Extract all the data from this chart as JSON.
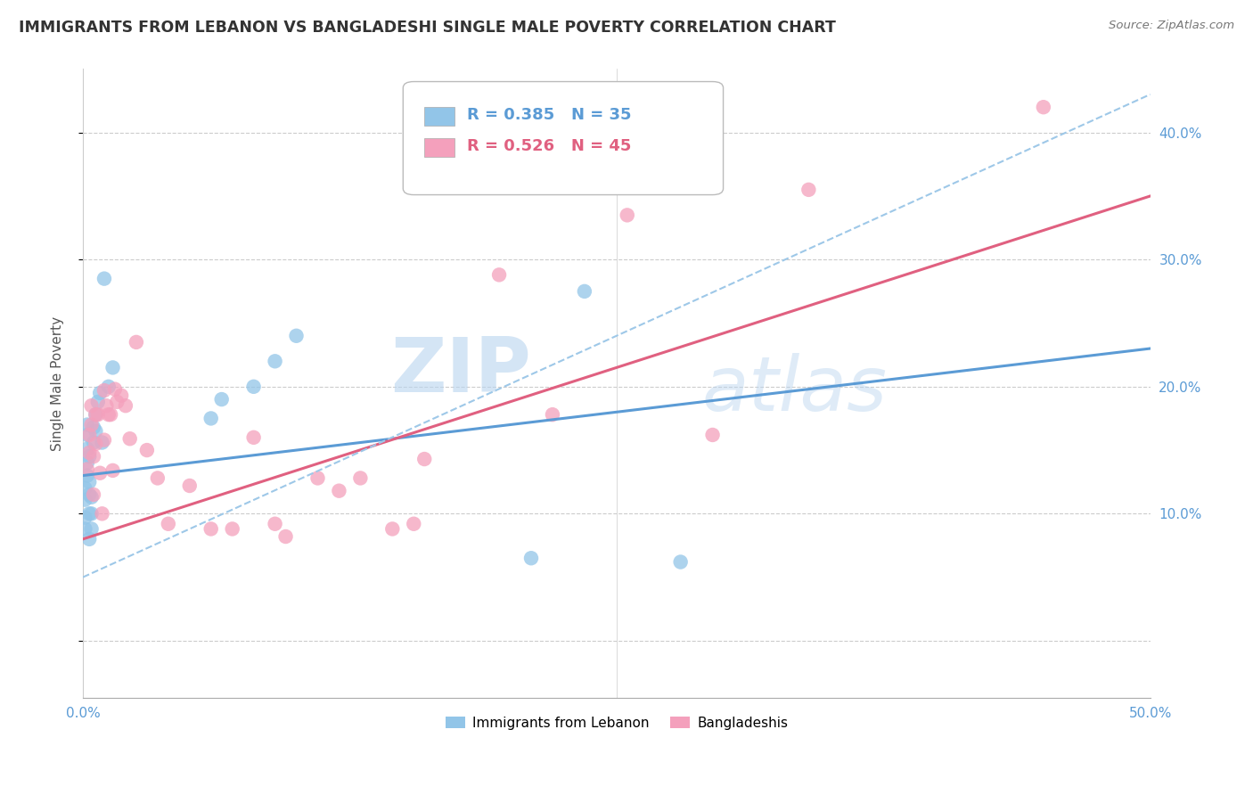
{
  "title": "IMMIGRANTS FROM LEBANON VS BANGLADESHI SINGLE MALE POVERTY CORRELATION CHART",
  "source": "Source: ZipAtlas.com",
  "ylabel": "Single Male Poverty",
  "legend_blue_r": "R = 0.385",
  "legend_blue_n": "N = 35",
  "legend_pink_r": "R = 0.526",
  "legend_pink_n": "N = 45",
  "legend_label_blue": "Immigrants from Lebanon",
  "legend_label_pink": "Bangladeshis",
  "blue_color": "#92C5E8",
  "pink_color": "#F4A0BC",
  "blue_line_color": "#5B9BD5",
  "pink_line_color": "#E06080",
  "dashed_line_color": "#9EC8E8",
  "watermark_zip": "ZIP",
  "watermark_atlas": "atlas",
  "xlim": [
    0.0,
    0.5
  ],
  "ylim": [
    -0.045,
    0.45
  ],
  "blue_trend_x": [
    0.0,
    0.5
  ],
  "blue_trend_y": [
    0.13,
    0.23
  ],
  "pink_trend_x": [
    0.0,
    0.5
  ],
  "pink_trend_y": [
    0.08,
    0.35
  ],
  "dashed_trend_x": [
    0.0,
    0.5
  ],
  "dashed_trend_y": [
    0.05,
    0.43
  ],
  "blue_x": [
    0.001,
    0.001,
    0.001,
    0.001,
    0.002,
    0.002,
    0.002,
    0.002,
    0.002,
    0.003,
    0.003,
    0.003,
    0.003,
    0.003,
    0.004,
    0.004,
    0.004,
    0.005,
    0.005,
    0.006,
    0.006,
    0.007,
    0.008,
    0.009,
    0.01,
    0.012,
    0.014,
    0.06,
    0.065,
    0.08,
    0.09,
    0.1,
    0.21,
    0.235,
    0.28
  ],
  "blue_y": [
    0.088,
    0.097,
    0.111,
    0.12,
    0.13,
    0.14,
    0.151,
    0.162,
    0.17,
    0.08,
    0.1,
    0.115,
    0.125,
    0.145,
    0.088,
    0.1,
    0.113,
    0.156,
    0.168,
    0.165,
    0.178,
    0.188,
    0.195,
    0.156,
    0.285,
    0.2,
    0.215,
    0.175,
    0.19,
    0.2,
    0.22,
    0.24,
    0.065,
    0.275,
    0.062
  ],
  "pink_x": [
    0.002,
    0.003,
    0.003,
    0.004,
    0.004,
    0.005,
    0.005,
    0.006,
    0.006,
    0.007,
    0.008,
    0.009,
    0.01,
    0.01,
    0.011,
    0.012,
    0.013,
    0.014,
    0.015,
    0.016,
    0.018,
    0.02,
    0.022,
    0.025,
    0.03,
    0.035,
    0.04,
    0.05,
    0.06,
    0.07,
    0.08,
    0.09,
    0.095,
    0.11,
    0.12,
    0.13,
    0.145,
    0.155,
    0.16,
    0.195,
    0.22,
    0.255,
    0.295,
    0.34,
    0.45
  ],
  "pink_y": [
    0.135,
    0.148,
    0.162,
    0.17,
    0.185,
    0.115,
    0.145,
    0.155,
    0.178,
    0.178,
    0.132,
    0.1,
    0.158,
    0.197,
    0.185,
    0.178,
    0.178,
    0.134,
    0.198,
    0.188,
    0.193,
    0.185,
    0.159,
    0.235,
    0.15,
    0.128,
    0.092,
    0.122,
    0.088,
    0.088,
    0.16,
    0.092,
    0.082,
    0.128,
    0.118,
    0.128,
    0.088,
    0.092,
    0.143,
    0.288,
    0.178,
    0.335,
    0.162,
    0.355,
    0.42
  ]
}
